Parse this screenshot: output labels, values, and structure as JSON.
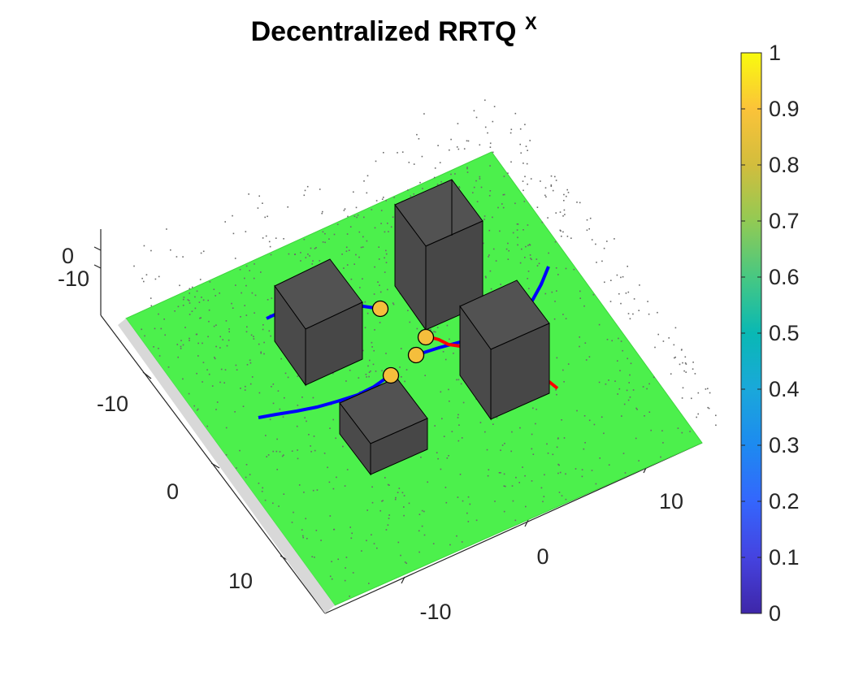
{
  "chart_data": {
    "type": "3d-surface-scene",
    "title": "Decentralized RRTQ",
    "title_superscript": "X",
    "xlim": [
      -15,
      15
    ],
    "ylim": [
      -15,
      15
    ],
    "zlim": [
      -15,
      5
    ],
    "x_ticks": [
      "-10",
      "0",
      "10"
    ],
    "y_ticks": [
      "-10",
      "0",
      "10"
    ],
    "z_ticks": [
      "0",
      "-10"
    ],
    "colormap": "parula",
    "colorbar": {
      "position": "right",
      "ticks": [
        "0",
        "0.1",
        "0.2",
        "0.3",
        "0.4",
        "0.5",
        "0.6",
        "0.7",
        "0.8",
        "0.9",
        "1"
      ]
    },
    "ground_plane": {
      "color": "#4cf04c",
      "z": 0
    },
    "obstacles": [
      {
        "label": "block-left",
        "color": "#4a4a4a"
      },
      {
        "label": "block-tall-back",
        "color": "#4a4a4a"
      },
      {
        "label": "block-right",
        "color": "#4a4a4a"
      },
      {
        "label": "block-front",
        "color": "#4a4a4a"
      }
    ],
    "paths": [
      {
        "color": "#0000ff",
        "label": "blue-path-1"
      },
      {
        "color": "#0000ff",
        "label": "blue-path-2"
      },
      {
        "color": "#0000ff",
        "label": "blue-path-3"
      },
      {
        "color": "#ff0000",
        "label": "red-path-1"
      },
      {
        "color": "#ff0000",
        "label": "red-path-2"
      }
    ],
    "agents": {
      "count": 4,
      "color": "#f5be3c"
    },
    "point_cloud": {
      "color": "#6a6a6a"
    },
    "grid": false,
    "legend": "none"
  }
}
